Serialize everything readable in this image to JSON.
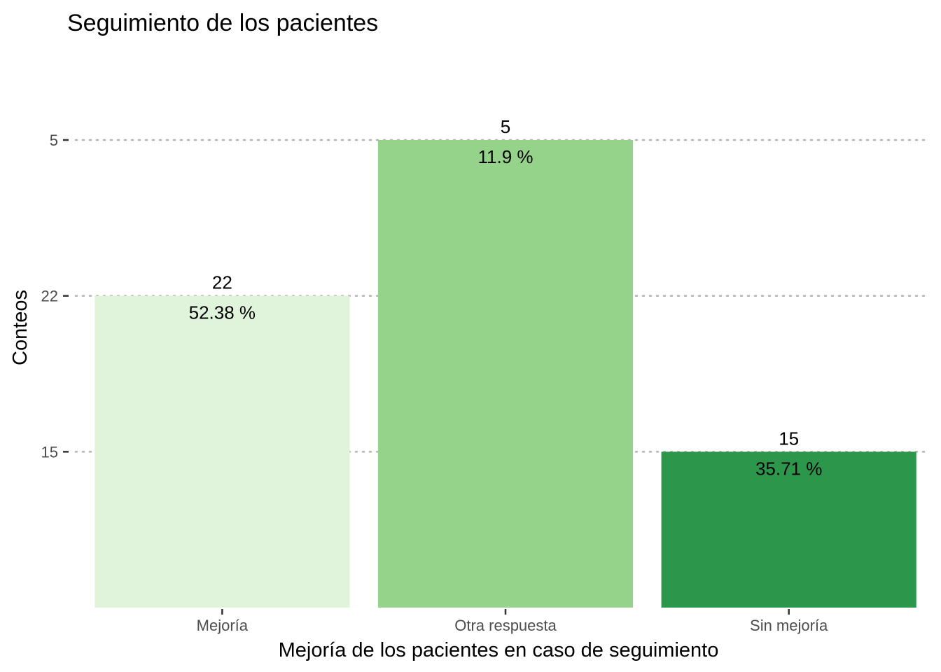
{
  "chart_data": {
    "type": "bar",
    "title": "Seguimiento de los pacientes",
    "xlabel": "Mejoría de los pacientes en caso de seguimiento",
    "ylabel": "Conteos",
    "categories": [
      "Mejoría",
      "Otra respuesta",
      "Sin mejoría"
    ],
    "values": [
      22,
      5,
      15
    ],
    "value_labels": [
      "22",
      "5",
      "15"
    ],
    "percent_labels": [
      "52.38 %",
      "11.9 %",
      "35.71 %"
    ],
    "colors": [
      "#e0f3db",
      "#94d389",
      "#2c974b"
    ],
    "y_ticks": [
      "15",
      "22",
      "5"
    ],
    "y_tick_levels": [
      0.3333,
      0.6667,
      1.0
    ],
    "bar_levels": [
      0.6667,
      1.0,
      0.3333
    ],
    "grid": "horizontal dotted",
    "legend": "none"
  }
}
